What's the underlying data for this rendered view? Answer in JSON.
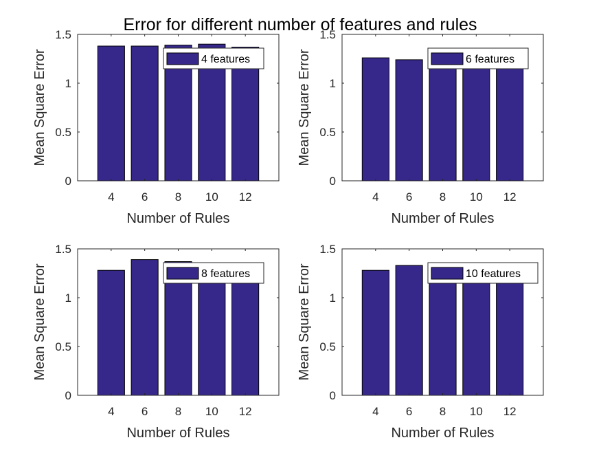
{
  "figure": {
    "title": "Error for different number of features and rules",
    "bar_color": "#35288a",
    "bar_edge_color": "#000000"
  },
  "chart_data": [
    {
      "type": "bar",
      "categories": [
        "4",
        "6",
        "8",
        "10",
        "12"
      ],
      "series": [
        {
          "name": "4 features",
          "values": [
            1.38,
            1.38,
            1.39,
            1.4,
            1.37
          ]
        }
      ],
      "xlabel": "Number of Rules",
      "ylabel": "Mean Square Error",
      "ylim": [
        0,
        1.5
      ],
      "yticks": [
        "0",
        "0.5",
        "1",
        "1.5"
      ],
      "grid": false,
      "legend": "top-right"
    },
    {
      "type": "bar",
      "categories": [
        "4",
        "6",
        "8",
        "10",
        "12"
      ],
      "series": [
        {
          "name": "6 features",
          "values": [
            1.26,
            1.24,
            1.23,
            1.22,
            1.21
          ]
        }
      ],
      "xlabel": "Number of Rules",
      "ylabel": "Mean Square Error",
      "ylim": [
        0,
        1.5
      ],
      "yticks": [
        "0",
        "0.5",
        "1",
        "1.5"
      ],
      "grid": false,
      "legend": "top-right"
    },
    {
      "type": "bar",
      "categories": [
        "4",
        "6",
        "8",
        "10",
        "12"
      ],
      "series": [
        {
          "name": "8 features",
          "values": [
            1.28,
            1.39,
            1.37,
            1.33,
            1.3
          ]
        }
      ],
      "xlabel": "Number of Rules",
      "ylabel": "Mean Square Error",
      "ylim": [
        0,
        1.5
      ],
      "yticks": [
        "0",
        "0.5",
        "1",
        "1.5"
      ],
      "grid": false,
      "legend": "top-right"
    },
    {
      "type": "bar",
      "categories": [
        "4",
        "6",
        "8",
        "10",
        "12"
      ],
      "series": [
        {
          "name": "10 features",
          "values": [
            1.28,
            1.33,
            1.33,
            1.35,
            1.34
          ]
        }
      ],
      "xlabel": "Number of Rules",
      "ylabel": "Mean Square Error",
      "ylim": [
        0,
        1.5
      ],
      "yticks": [
        "0",
        "0.5",
        "1",
        "1.5"
      ],
      "grid": false,
      "legend": "top-right"
    }
  ]
}
